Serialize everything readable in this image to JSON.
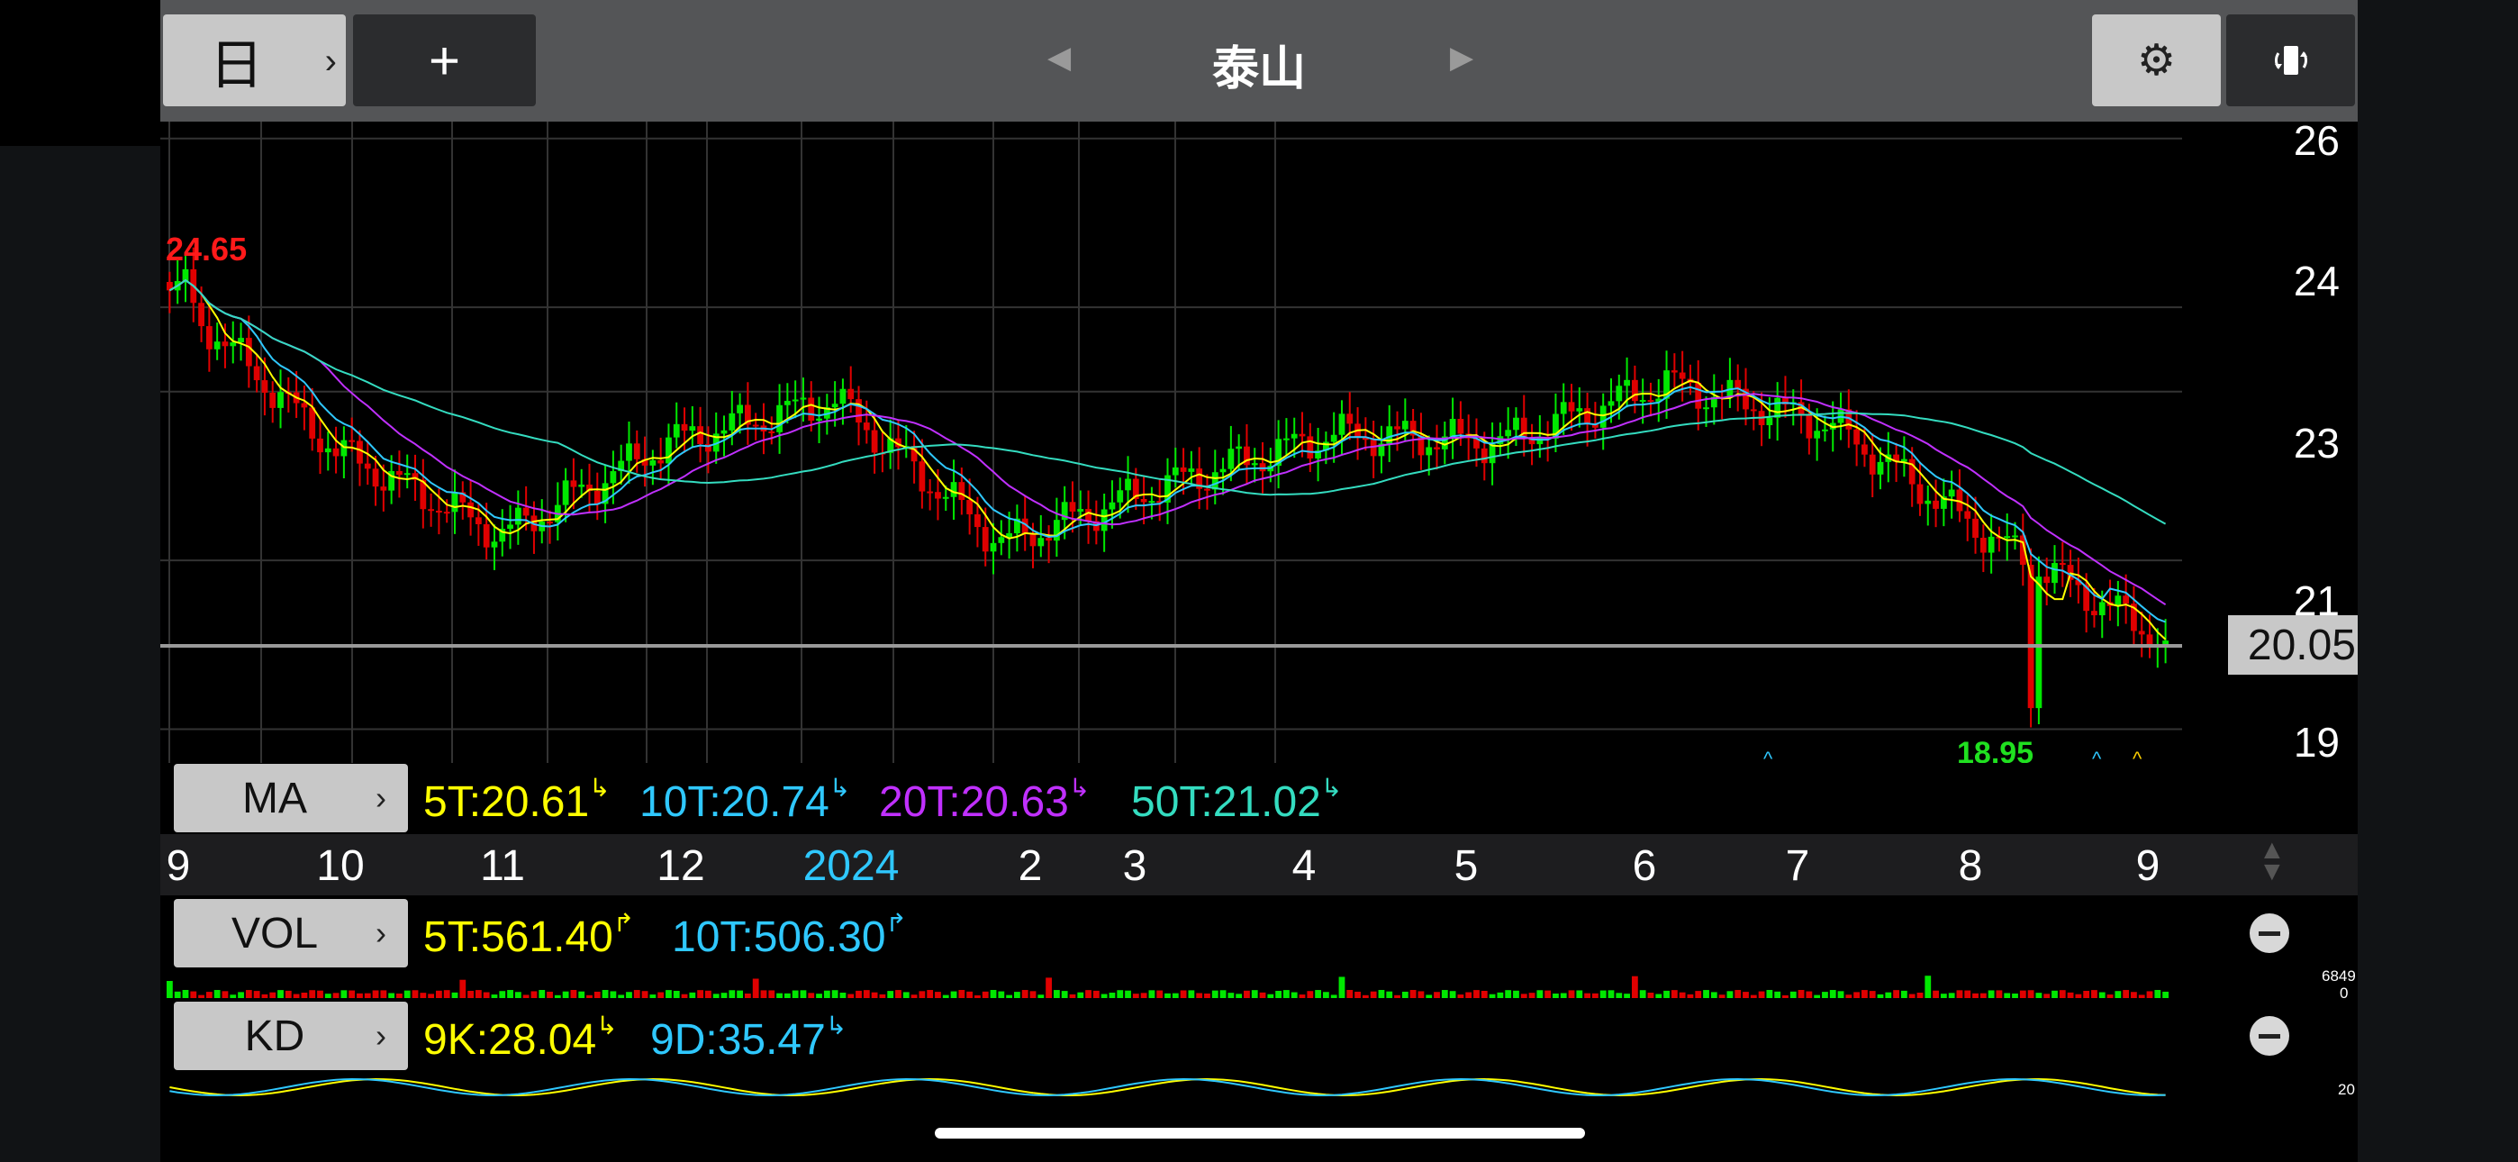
{
  "toolbar": {
    "period": "日",
    "add": "+",
    "title": "泰山",
    "prev_glyph": "◀",
    "next_glyph": "▶",
    "settings_icon": "gear-icon",
    "rotate_icon": "rotate-screen-icon"
  },
  "price_axis": {
    "ticks": [
      "26",
      "24",
      "23",
      "21",
      "19"
    ],
    "current_price": "20.05"
  },
  "annotations": {
    "high_label": "24.65",
    "low_label": "18.95"
  },
  "ma": {
    "button": "MA",
    "items": [
      {
        "label": "5T:20.61",
        "color": "#ffff00"
      },
      {
        "label": "10T:20.74",
        "color": "#2fc8ff"
      },
      {
        "label": "20T:20.63",
        "color": "#c030ff"
      },
      {
        "label": "50T:21.02",
        "color": "#34dcc0"
      }
    ]
  },
  "x_axis": {
    "labels": [
      "9",
      "10",
      "11",
      "12",
      "2024",
      "2",
      "3",
      "4",
      "5",
      "6",
      "7",
      "8",
      "9"
    ],
    "highlight_color": "#2fc8ff"
  },
  "vol": {
    "button": "VOL",
    "items": [
      {
        "label": "5T:561.40",
        "color": "#ffff00"
      },
      {
        "label": "10T:506.30",
        "color": "#2fc8ff"
      }
    ],
    "scale_max": "6849",
    "scale_min": "0"
  },
  "kd": {
    "button": "KD",
    "items": [
      {
        "label": "9K:28.04",
        "color": "#ffff00"
      },
      {
        "label": "9D:35.47",
        "color": "#2fc8ff"
      }
    ],
    "scale": "20"
  },
  "chart_data": {
    "type": "candlestick",
    "title": "泰山",
    "y_ticks": [
      26,
      24,
      23,
      21,
      19
    ],
    "x_labels": [
      "9",
      "10",
      "11",
      "12",
      "2024",
      "2",
      "3",
      "4",
      "5",
      "6",
      "7",
      "8",
      "9"
    ],
    "close_path": [
      [
        "9",
        24.2
      ],
      [
        "10",
        22.3
      ],
      [
        "11",
        21.3
      ],
      [
        "12",
        22.4
      ],
      [
        "2024",
        22.9
      ],
      [
        "2",
        21.2
      ],
      [
        "3",
        21.9
      ],
      [
        "4",
        22.5
      ],
      [
        "5",
        22.4
      ],
      [
        "6",
        23.1
      ],
      [
        "7",
        22.6
      ],
      [
        "8",
        21.2
      ],
      [
        "9",
        20.05
      ]
    ],
    "extremes": {
      "high": 24.65,
      "low": 18.95
    },
    "last_price": 20.05,
    "moving_averages": [
      {
        "name": "5T",
        "value": 20.61
      },
      {
        "name": "10T",
        "value": 20.74
      },
      {
        "name": "20T",
        "value": 20.63
      },
      {
        "name": "50T",
        "value": 21.02
      }
    ],
    "up_color": "#00e800",
    "down_color": "#e00000",
    "grid": true
  }
}
